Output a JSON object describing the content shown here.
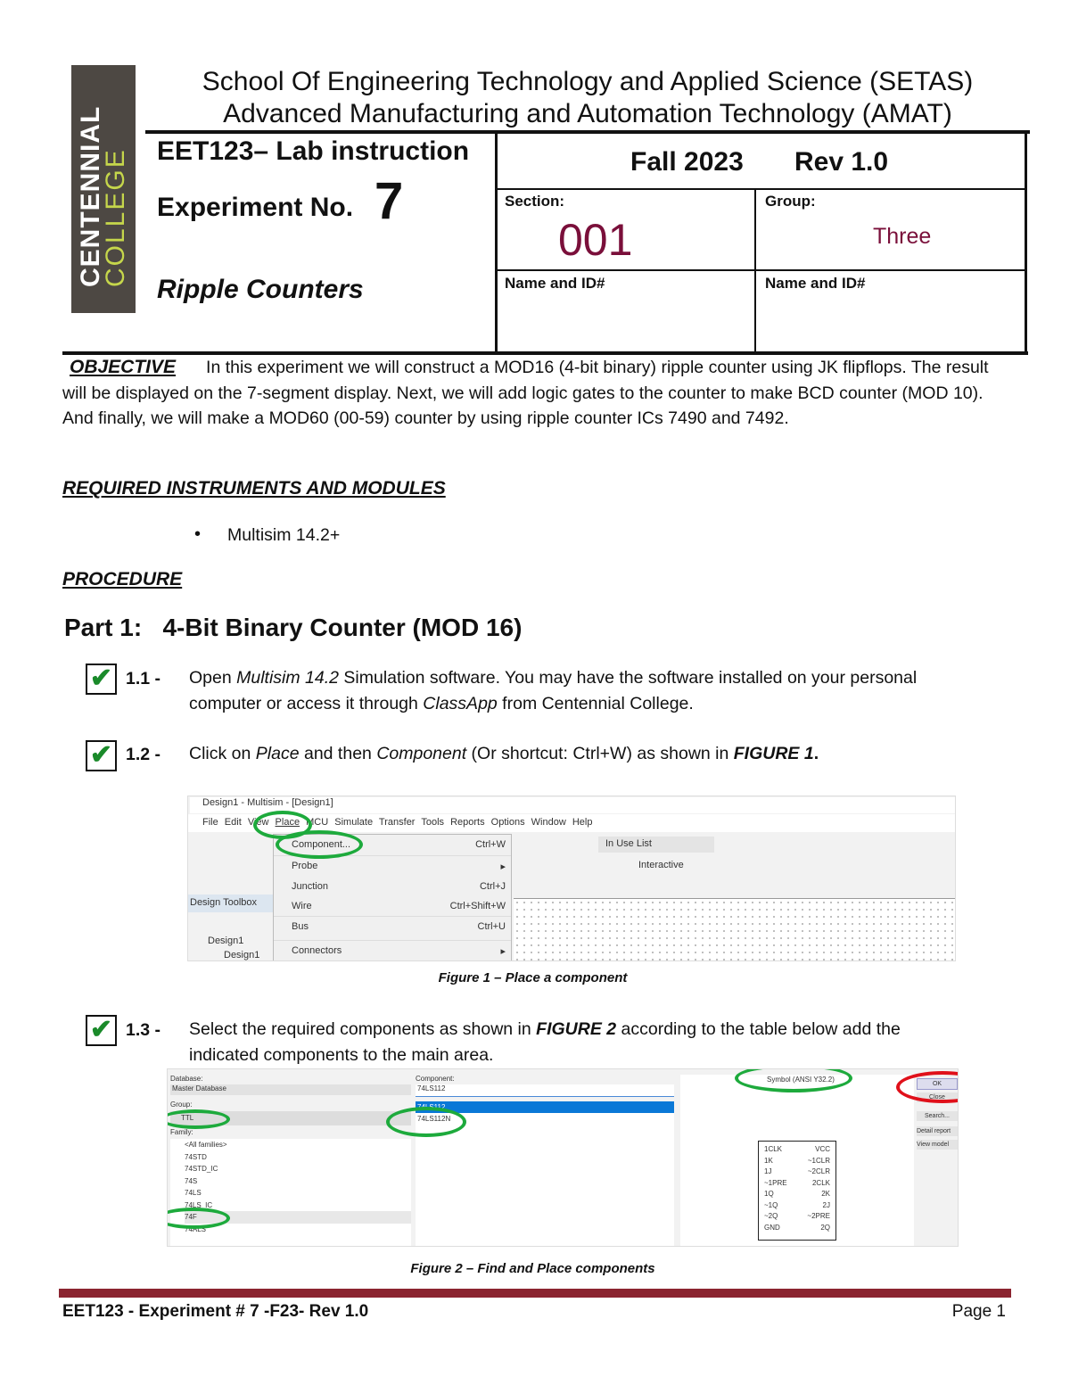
{
  "logo": {
    "line1": "CENTENNIAL",
    "line2": "COLLEGE",
    "bg": "#4d4843",
    "accent": "#c5d64b"
  },
  "header": {
    "school": "School Of Engineering Technology and Applied Science (SETAS)",
    "program": "Advanced Manufacturing and Automation Technology (AMAT)"
  },
  "title": {
    "course": "EET123– Lab instruction",
    "experiment_label": "Experiment No.",
    "experiment_number": "7",
    "topic": "Ripple Counters"
  },
  "info": {
    "term": "Fall 2023",
    "rev": "Rev 1.0",
    "section_label": "Section:",
    "section_value": "001",
    "group_label": "Group:",
    "group_value": "Three",
    "name_label_1": "Name and ID#",
    "name_label_2": "Name and ID#"
  },
  "objective": {
    "heading": "OBJECTIVE",
    "text": "In this experiment we will construct a MOD16 (4-bit binary) ripple counter using JK flipflops. The result will be displayed on the 7-segment display. Next, we will add logic gates to the counter to make BCD counter (MOD 10). And finally, we will make a MOD60 (00-59) counter by using ripple counter ICs 7490 and 7492."
  },
  "instruments": {
    "heading": "REQUIRED INSTRUMENTS AND MODULES",
    "items": [
      "Multisim 14.2+"
    ]
  },
  "procedure": {
    "heading": "PROCEDURE"
  },
  "part1": {
    "heading": "Part 1:   4-Bit Binary Counter (MOD 16)"
  },
  "steps": [
    {
      "num": "1.1 -",
      "line1": [
        "Open ",
        "Multisim 14.2",
        " Simulation software. You may have the software installed on your personal"
      ],
      "line2": [
        "computer or access it through ",
        "ClassApp",
        " from Centennial College."
      ]
    },
    {
      "num": "1.2 -",
      "line1": [
        "Click on ",
        "Place",
        " and then ",
        "Component",
        " (Or shortcut:  Ctrl+W) as shown in ",
        "FIGURE 1",
        "."
      ]
    },
    {
      "num": "1.3 -",
      "line1": [
        "Select the required components as shown in ",
        "FIGURE 2",
        " according to the table below add the"
      ],
      "line2": [
        "indicated components to the main area."
      ]
    }
  ],
  "figure1": {
    "caption": "Figure 1 – Place a component",
    "title": "Design1 - Multisim - [Design1]",
    "menu": [
      "File",
      "Edit",
      "View",
      "Place",
      "MCU",
      "Simulate",
      "Transfer",
      "Tools",
      "Reports",
      "Options",
      "Window",
      "Help"
    ],
    "dropdown": [
      {
        "label": "Component...",
        "shortcut": "Ctrl+W"
      },
      {
        "label": "Probe",
        "shortcut": "▸"
      },
      {
        "label": "Junction",
        "shortcut": "Ctrl+J"
      },
      {
        "label": "Wire",
        "shortcut": "Ctrl+Shift+W"
      },
      {
        "label": "Bus",
        "shortcut": "Ctrl+U"
      },
      {
        "label": "Connectors",
        "shortcut": "▸"
      }
    ],
    "inuse": "In Use List",
    "interactive": "Interactive",
    "toolbox": "Design Toolbox",
    "tree": [
      "Design1",
      "Design1"
    ]
  },
  "figure2": {
    "caption": "Figure 2 – Find and Place components",
    "database_label": "Database:",
    "database_value": "Master Database",
    "group_label": "Group:",
    "group_value": "TTL",
    "family_label": "Family:",
    "families": [
      "<All families>",
      "74STD",
      "74STD_IC",
      "74S",
      "74LS",
      "74LS_IC",
      "74F",
      "74ALS"
    ],
    "component_label": "Component:",
    "component_value": "74LS112",
    "components": [
      "74LS112",
      "74LS112N"
    ],
    "symbol_label": "Symbol (ANSI Y32.2)",
    "buttons": [
      "OK",
      "Close",
      "Search...",
      "Detail report",
      "View model"
    ],
    "pins_left": [
      "1CLK",
      "1K",
      "1J",
      "~1PRE",
      "1Q",
      "~1Q",
      "~2Q",
      "GND"
    ],
    "pins_right": [
      "VCC",
      "~1CLR",
      "~2CLR",
      "2CLK",
      "2K",
      "2J",
      "~2PRE",
      "2Q"
    ]
  },
  "footer": {
    "left": "EET123 - Experiment # 7 -F23- Rev 1.0",
    "right": "Page 1",
    "bar_color": "#8b2430"
  }
}
